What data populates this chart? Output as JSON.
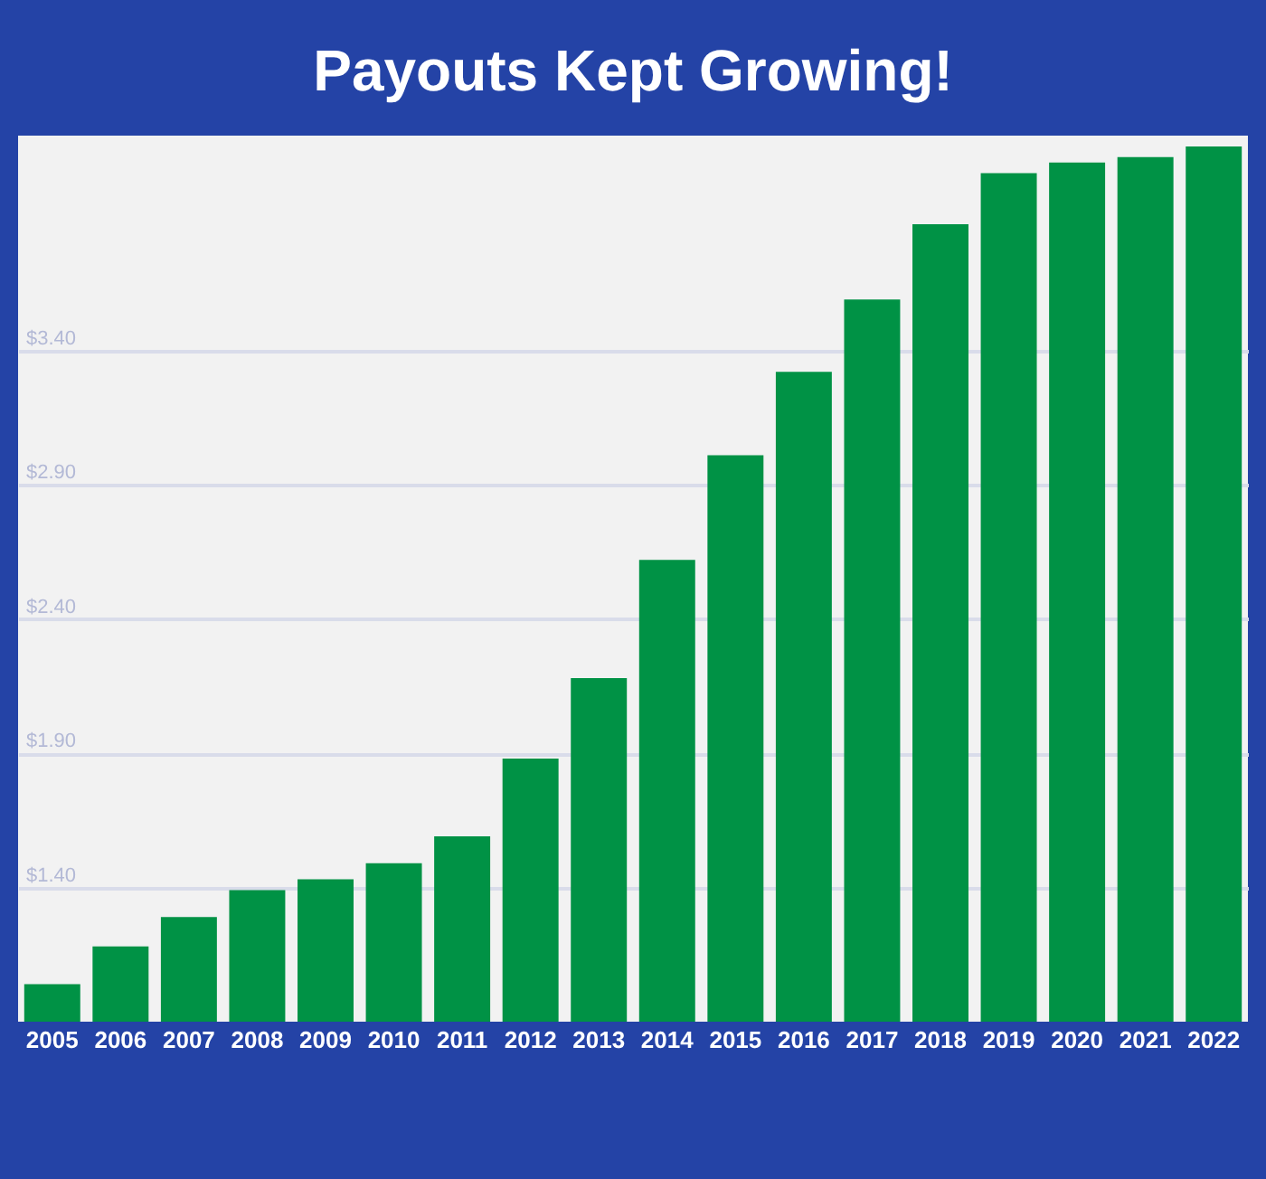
{
  "chart_data": {
    "type": "bar",
    "title": "Payouts Kept Growing!",
    "categories": [
      "2005",
      "2006",
      "2007",
      "2008",
      "2009",
      "2010",
      "2011",
      "2012",
      "2013",
      "2014",
      "2015",
      "2016",
      "2017",
      "2018",
      "2019",
      "2020",
      "2021",
      "2022"
    ],
    "values": [
      1.04,
      1.18,
      1.29,
      1.39,
      1.43,
      1.49,
      1.59,
      1.88,
      2.18,
      2.62,
      3.01,
      3.32,
      3.59,
      3.87,
      4.06,
      4.1,
      4.12,
      4.16
    ],
    "color": "#009245",
    "ylim": [
      0.9,
      4.2
    ],
    "yticks": [
      {
        "value": 1.4,
        "label": "$1.40"
      },
      {
        "value": 1.9,
        "label": "$1.90"
      },
      {
        "value": 2.4,
        "label": "$2.40"
      },
      {
        "value": 2.9,
        "label": "$2.90"
      },
      {
        "value": 3.4,
        "label": "$3.40"
      }
    ],
    "grid": "y"
  }
}
